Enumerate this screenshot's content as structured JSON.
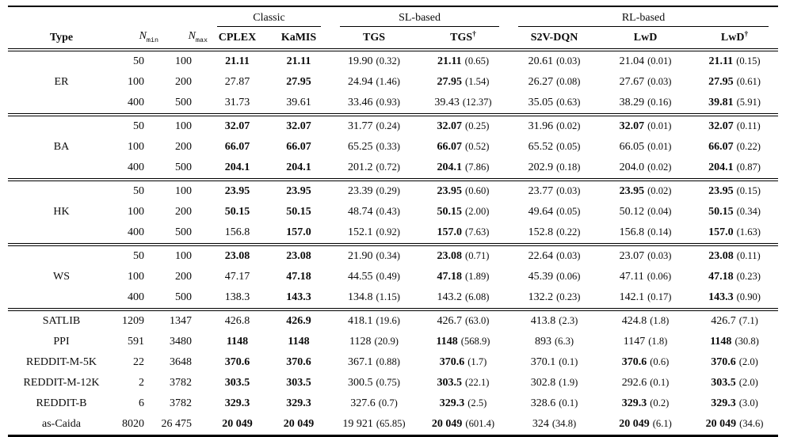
{
  "table": {
    "header": {
      "type_label": "Type",
      "nmin": {
        "base": "N",
        "sub": "min"
      },
      "nmax": {
        "base": "N",
        "sub": "max"
      },
      "groups": [
        {
          "label": "Classic",
          "span": 2
        },
        {
          "label": "SL-based",
          "span": 2
        },
        {
          "label": "RL-based",
          "span": 3
        }
      ],
      "methods": [
        "CPLEX",
        "KaMIS",
        "TGS",
        "TGS†",
        "S2V-DQN",
        "LwD",
        "LwD†"
      ]
    },
    "sections": [
      {
        "kind": "group",
        "type": "ER",
        "rows": [
          {
            "nmin": "50",
            "nmax": "100",
            "cells": [
              {
                "v": "21.11",
                "b": true
              },
              {
                "v": "21.11",
                "b": true
              },
              {
                "v": "19.90",
                "std": "0.32"
              },
              {
                "v": "21.11",
                "std": "0.65",
                "b": true
              },
              {
                "v": "20.61",
                "std": "0.03"
              },
              {
                "v": "21.04",
                "std": "0.01"
              },
              {
                "v": "21.11",
                "std": "0.15",
                "b": true
              }
            ]
          },
          {
            "nmin": "100",
            "nmax": "200",
            "cells": [
              {
                "v": "27.87"
              },
              {
                "v": "27.95",
                "b": true
              },
              {
                "v": "24.94",
                "std": "1.46"
              },
              {
                "v": "27.95",
                "std": "1.54",
                "b": true
              },
              {
                "v": "26.27",
                "std": "0.08"
              },
              {
                "v": "27.67",
                "std": "0.03"
              },
              {
                "v": "27.95",
                "std": "0.61",
                "b": true
              }
            ]
          },
          {
            "nmin": "400",
            "nmax": "500",
            "cells": [
              {
                "v": "31.73"
              },
              {
                "v": "39.61"
              },
              {
                "v": "33.46",
                "std": "0.93"
              },
              {
                "v": "39.43",
                "std": "12.37"
              },
              {
                "v": "35.05",
                "std": "0.63"
              },
              {
                "v": "38.29",
                "std": "0.16"
              },
              {
                "v": "39.81",
                "std": "5.91",
                "b": true
              }
            ]
          }
        ]
      },
      {
        "kind": "group",
        "type": "BA",
        "rows": [
          {
            "nmin": "50",
            "nmax": "100",
            "cells": [
              {
                "v": "32.07",
                "b": true
              },
              {
                "v": "32.07",
                "b": true
              },
              {
                "v": "31.77",
                "std": "0.24"
              },
              {
                "v": "32.07",
                "std": "0.25",
                "b": true
              },
              {
                "v": "31.96",
                "std": "0.02"
              },
              {
                "v": "32.07",
                "std": "0.01",
                "b": true
              },
              {
                "v": "32.07",
                "std": "0.11",
                "b": true
              }
            ]
          },
          {
            "nmin": "100",
            "nmax": "200",
            "cells": [
              {
                "v": "66.07",
                "b": true
              },
              {
                "v": "66.07",
                "b": true
              },
              {
                "v": "65.25",
                "std": "0.33"
              },
              {
                "v": "66.07",
                "std": "0.52",
                "b": true
              },
              {
                "v": "65.52",
                "std": "0.05"
              },
              {
                "v": "66.05",
                "std": "0.01"
              },
              {
                "v": "66.07",
                "std": "0.22",
                "b": true
              }
            ]
          },
          {
            "nmin": "400",
            "nmax": "500",
            "cells": [
              {
                "v": "204.1",
                "b": true
              },
              {
                "v": "204.1",
                "b": true
              },
              {
                "v": "201.2",
                "std": "0.72"
              },
              {
                "v": "204.1",
                "std": "7.86",
                "b": true
              },
              {
                "v": "202.9",
                "std": "0.18"
              },
              {
                "v": "204.0",
                "std": "0.02"
              },
              {
                "v": "204.1",
                "std": "0.87",
                "b": true
              }
            ]
          }
        ]
      },
      {
        "kind": "group",
        "type": "HK",
        "rows": [
          {
            "nmin": "50",
            "nmax": "100",
            "cells": [
              {
                "v": "23.95",
                "b": true
              },
              {
                "v": "23.95",
                "b": true
              },
              {
                "v": "23.39",
                "std": "0.29"
              },
              {
                "v": "23.95",
                "std": "0.60",
                "b": true
              },
              {
                "v": "23.77",
                "std": "0.03"
              },
              {
                "v": "23.95",
                "std": "0.02",
                "b": true
              },
              {
                "v": "23.95",
                "std": "0.15",
                "b": true
              }
            ]
          },
          {
            "nmin": "100",
            "nmax": "200",
            "cells": [
              {
                "v": "50.15",
                "b": true
              },
              {
                "v": "50.15",
                "b": true
              },
              {
                "v": "48.74",
                "std": "0.43"
              },
              {
                "v": "50.15",
                "std": "2.00",
                "b": true
              },
              {
                "v": "49.64",
                "std": "0.05"
              },
              {
                "v": "50.12",
                "std": "0.04"
              },
              {
                "v": "50.15",
                "std": "0.34",
                "b": true
              }
            ]
          },
          {
            "nmin": "400",
            "nmax": "500",
            "cells": [
              {
                "v": "156.8"
              },
              {
                "v": "157.0",
                "b": true
              },
              {
                "v": "152.1",
                "std": "0.92"
              },
              {
                "v": "157.0",
                "std": "7.63",
                "b": true
              },
              {
                "v": "152.8",
                "std": "0.22"
              },
              {
                "v": "156.8",
                "std": "0.14"
              },
              {
                "v": "157.0",
                "std": "1.63",
                "b": true
              }
            ]
          }
        ]
      },
      {
        "kind": "group",
        "type": "WS",
        "rows": [
          {
            "nmin": "50",
            "nmax": "100",
            "cells": [
              {
                "v": "23.08",
                "b": true
              },
              {
                "v": "23.08",
                "b": true
              },
              {
                "v": "21.90",
                "std": "0.34"
              },
              {
                "v": "23.08",
                "std": "0.71",
                "b": true
              },
              {
                "v": "22.64",
                "std": "0.03"
              },
              {
                "v": "23.07",
                "std": "0.03"
              },
              {
                "v": "23.08",
                "std": "0.11",
                "b": true
              }
            ]
          },
          {
            "nmin": "100",
            "nmax": "200",
            "cells": [
              {
                "v": "47.17"
              },
              {
                "v": "47.18",
                "b": true
              },
              {
                "v": "44.55",
                "std": "0.49"
              },
              {
                "v": "47.18",
                "std": "1.89",
                "b": true
              },
              {
                "v": "45.39",
                "std": "0.06"
              },
              {
                "v": "47.11",
                "std": "0.06"
              },
              {
                "v": "47.18",
                "std": "0.23",
                "b": true
              }
            ]
          },
          {
            "nmin": "400",
            "nmax": "500",
            "cells": [
              {
                "v": "138.3"
              },
              {
                "v": "143.3",
                "b": true
              },
              {
                "v": "134.8",
                "std": "1.15"
              },
              {
                "v": "143.2",
                "std": "6.08"
              },
              {
                "v": "132.2",
                "std": "0.23"
              },
              {
                "v": "142.1",
                "std": "0.17"
              },
              {
                "v": "143.3",
                "std": "0.90",
                "b": true
              }
            ]
          }
        ]
      },
      {
        "kind": "singles",
        "rows": [
          {
            "type": "SATLIB",
            "nmin": "1209",
            "nmax": "1347",
            "cells": [
              {
                "v": "426.8"
              },
              {
                "v": "426.9",
                "b": true
              },
              {
                "v": "418.1",
                "std": "19.6"
              },
              {
                "v": "426.7",
                "std": "63.0"
              },
              {
                "v": "413.8",
                "std": "2.3"
              },
              {
                "v": "424.8",
                "std": "1.8"
              },
              {
                "v": "426.7",
                "std": "7.1"
              }
            ]
          },
          {
            "type": "PPI",
            "nmin": "591",
            "nmax": "3480",
            "cells": [
              {
                "v": "1148",
                "b": true
              },
              {
                "v": "1148",
                "b": true
              },
              {
                "v": "1128",
                "std": "20.9"
              },
              {
                "v": "1148",
                "std": "568.9",
                "b": true
              },
              {
                "v": "893",
                "std": "6.3"
              },
              {
                "v": "1147",
                "std": "1.8"
              },
              {
                "v": "1148",
                "std": "30.8",
                "b": true
              }
            ]
          },
          {
            "type": "REDDIT-M-5K",
            "nmin": "22",
            "nmax": "3648",
            "cells": [
              {
                "v": "370.6",
                "b": true
              },
              {
                "v": "370.6",
                "b": true
              },
              {
                "v": "367.1",
                "std": "0.88"
              },
              {
                "v": "370.6",
                "std": "1.7",
                "b": true
              },
              {
                "v": "370.1",
                "std": "0.1"
              },
              {
                "v": "370.6",
                "std": "0.6",
                "b": true
              },
              {
                "v": "370.6",
                "std": "2.0",
                "b": true
              }
            ]
          },
          {
            "type": "REDDIT-M-12K",
            "nmin": "2",
            "nmax": "3782",
            "cells": [
              {
                "v": "303.5",
                "b": true
              },
              {
                "v": "303.5",
                "b": true
              },
              {
                "v": "300.5",
                "std": "0.75"
              },
              {
                "v": "303.5",
                "std": "22.1",
                "b": true
              },
              {
                "v": "302.8",
                "std": "1.9"
              },
              {
                "v": "292.6",
                "std": "0.1"
              },
              {
                "v": "303.5",
                "std": "2.0",
                "b": true
              }
            ]
          },
          {
            "type": "REDDIT-B",
            "nmin": "6",
            "nmax": "3782",
            "cells": [
              {
                "v": "329.3",
                "b": true
              },
              {
                "v": "329.3",
                "b": true
              },
              {
                "v": "327.6",
                "std": "0.7"
              },
              {
                "v": "329.3",
                "std": "2.5",
                "b": true
              },
              {
                "v": "328.6",
                "std": "0.1"
              },
              {
                "v": "329.3",
                "std": "0.2",
                "b": true
              },
              {
                "v": "329.3",
                "std": "3.0",
                "b": true
              }
            ]
          },
          {
            "type": "as-Caida",
            "nmin": "8020",
            "nmax": "26 475",
            "cells": [
              {
                "v": "20 049",
                "b": true
              },
              {
                "v": "20 049",
                "b": true
              },
              {
                "v": "19 921",
                "std": "65.85"
              },
              {
                "v": "20 049",
                "std": "601.4",
                "b": true
              },
              {
                "v": "324",
                "std": "34.8"
              },
              {
                "v": "20 049",
                "std": "6.1",
                "b": true
              },
              {
                "v": "20 049",
                "std": "34.6",
                "b": true
              }
            ]
          }
        ]
      }
    ]
  }
}
